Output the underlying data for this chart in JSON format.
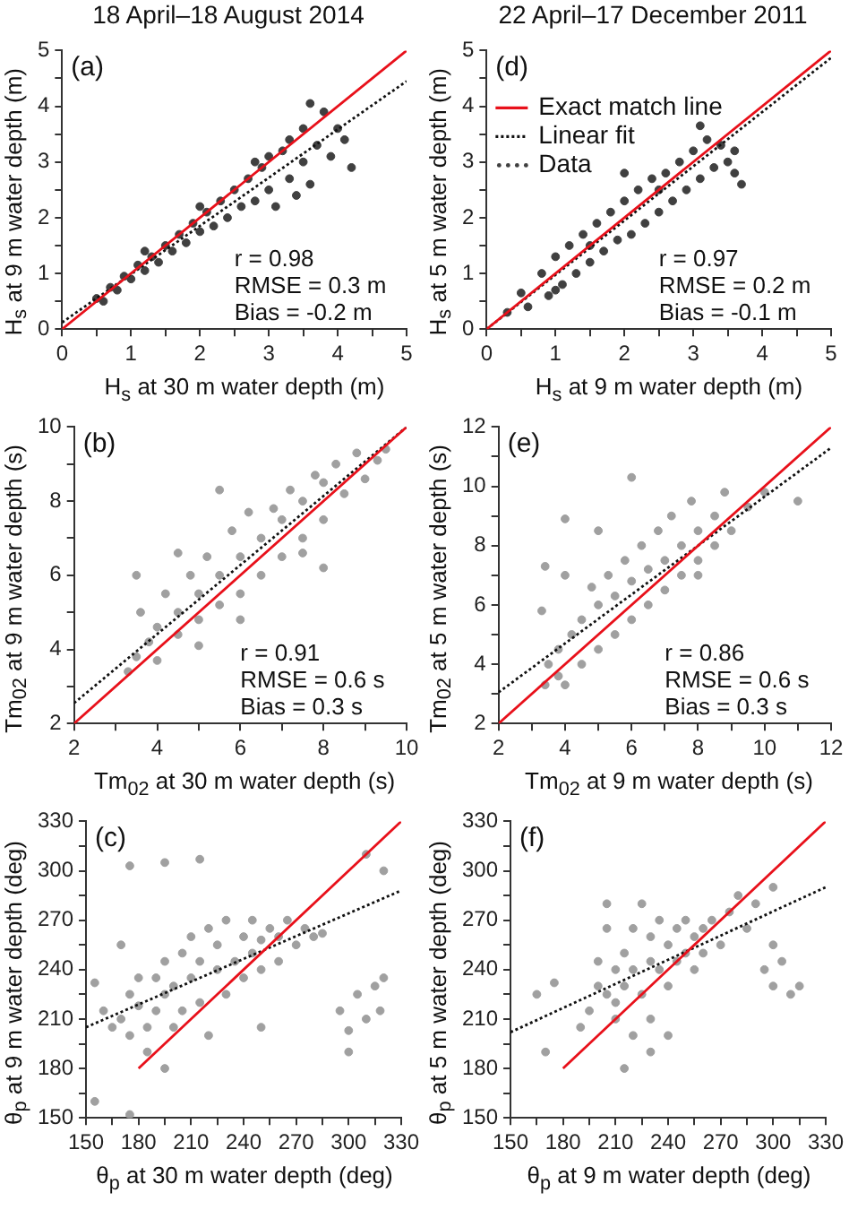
{
  "chart_data": [
    {
      "type": "scatter",
      "title": "18 April–18 August 2014",
      "xlabel": "H$_{s}$ at 30 m water depth (m)",
      "ylabel": "H$_{s}$ at 9 m water depth (m)",
      "xlim": [
        0,
        5
      ],
      "ylim": [
        0,
        5
      ],
      "xticks": [
        0,
        {
          "value": 0.5,
          "label": null
        },
        1,
        {
          "value": 1.5,
          "label": null
        },
        2,
        {
          "value": 2.5,
          "label": null
        },
        3,
        {
          "value": 3.5,
          "label": null
        },
        4,
        {
          "value": 4.5,
          "label": null
        },
        5
      ],
      "yticks": [
        0,
        {
          "value": 0.5,
          "label": null
        },
        1,
        {
          "value": 1.5,
          "label": null
        },
        2,
        {
          "value": 2.5,
          "label": null
        },
        3,
        {
          "value": 3.5,
          "label": null
        },
        4,
        {
          "value": 4.5,
          "label": null
        },
        5
      ],
      "annotations": [
        "(a)",
        "r = 0.98",
        "RMSE = 0.3 m",
        "Bias = -0.2 m"
      ],
      "series": [
        {
          "type": "line",
          "color": "#e8101a",
          "line_style": "solid",
          "marker": "none",
          "x": [
            0,
            5
          ],
          "values": [
            0,
            5
          ]
        },
        {
          "type": "line",
          "color": "#111111",
          "line_style": "dotted",
          "marker": "none",
          "x": [
            0,
            5
          ],
          "values": [
            0.12,
            4.45
          ]
        },
        {
          "color": "#404040",
          "marker": "circle",
          "x": [
            0.5,
            0.6,
            0.7,
            0.8,
            0.9,
            1.0,
            1.1,
            1.2,
            1.3,
            1.4,
            1.5,
            1.6,
            1.7,
            1.8,
            1.9,
            2.0,
            2.1,
            2.2,
            2.3,
            2.4,
            2.5,
            2.6,
            2.7,
            2.8,
            2.9,
            3.0,
            3.0,
            3.1,
            3.2,
            3.3,
            3.3,
            3.4,
            3.5,
            3.5,
            3.6,
            3.7,
            3.8,
            3.9,
            4.0,
            4.1,
            4.2,
            3.6,
            2.8,
            2.0,
            1.2
          ],
          "values": [
            0.55,
            0.5,
            0.75,
            0.7,
            0.95,
            0.9,
            1.15,
            1.05,
            1.3,
            1.2,
            1.5,
            1.4,
            1.7,
            1.55,
            1.9,
            1.75,
            2.1,
            1.85,
            2.3,
            2.0,
            2.5,
            2.2,
            2.7,
            2.3,
            2.9,
            2.5,
            3.1,
            2.2,
            3.2,
            2.7,
            3.4,
            2.4,
            3.0,
            3.6,
            2.6,
            3.3,
            3.9,
            3.1,
            3.6,
            3.4,
            2.9,
            4.05,
            3.0,
            2.2,
            1.4
          ]
        }
      ]
    },
    {
      "type": "scatter",
      "title": "22 April–17 December 2011",
      "xlabel": "H$_{s}$ at 9 m water depth (m)",
      "ylabel": "H$_{s}$ at 5 m water depth (m)",
      "xlim": [
        0,
        5
      ],
      "ylim": [
        0,
        5
      ],
      "xticks": [
        0,
        {
          "value": 0.5,
          "label": null
        },
        1,
        {
          "value": 1.5,
          "label": null
        },
        2,
        {
          "value": 2.5,
          "label": null
        },
        3,
        {
          "value": 3.5,
          "label": null
        },
        4,
        {
          "value": 4.5,
          "label": null
        },
        5
      ],
      "yticks": [
        0,
        {
          "value": 0.5,
          "label": null
        },
        1,
        {
          "value": 1.5,
          "label": null
        },
        2,
        {
          "value": 2.5,
          "label": null
        },
        3,
        {
          "value": 3.5,
          "label": null
        },
        4,
        {
          "value": 4.5,
          "label": null
        },
        5
      ],
      "legend": "top left",
      "annotations": [
        "(d)",
        "r = 0.97",
        "RMSE = 0.2 m",
        "Bias = -0.1 m"
      ],
      "series": [
        {
          "type": "line",
          "name": "Exact match line",
          "color": "#e8101a",
          "line_style": "solid",
          "marker": "none",
          "x": [
            0,
            5
          ],
          "values": [
            0,
            5
          ]
        },
        {
          "type": "line",
          "name": "Linear fit",
          "color": "#111111",
          "line_style": "dotted",
          "marker": "none",
          "x": [
            0,
            5
          ],
          "values": [
            0,
            4.87
          ]
        },
        {
          "name": "Data",
          "color": "#404040",
          "marker": "circle",
          "x": [
            0.3,
            0.5,
            0.6,
            0.8,
            0.9,
            1.0,
            1.1,
            1.2,
            1.3,
            1.4,
            1.5,
            1.6,
            1.7,
            1.8,
            1.9,
            2.0,
            2.1,
            2.2,
            2.3,
            2.4,
            2.5,
            2.6,
            2.7,
            2.8,
            2.9,
            3.0,
            3.1,
            3.2,
            3.3,
            3.4,
            3.5,
            3.6,
            3.7,
            3.6,
            2.0,
            1.5,
            2.5,
            1.0,
            3.1
          ],
          "values": [
            0.3,
            0.65,
            0.4,
            1.0,
            0.6,
            1.3,
            0.8,
            1.5,
            1.0,
            1.7,
            1.2,
            1.9,
            1.4,
            2.1,
            1.6,
            2.3,
            1.7,
            2.5,
            1.9,
            2.7,
            2.1,
            2.8,
            2.3,
            3.0,
            2.5,
            3.2,
            2.7,
            3.4,
            2.9,
            3.3,
            3.0,
            3.2,
            2.6,
            2.8,
            2.8,
            1.5,
            2.5,
            0.7,
            3.65
          ]
        }
      ]
    },
    {
      "type": "scatter",
      "xlabel": "Tm$_{02}$ at 30 m water depth (s)",
      "ylabel": "Tm$_{02}$ at 9 m water depth (s)",
      "xlim": [
        2,
        10
      ],
      "ylim": [
        2,
        10
      ],
      "xticks": [
        2,
        {
          "value": 3,
          "label": null
        },
        4,
        {
          "value": 5,
          "label": null
        },
        6,
        {
          "value": 7,
          "label": null
        },
        8,
        {
          "value": 9,
          "label": null
        },
        10
      ],
      "yticks": [
        2,
        {
          "value": 3,
          "label": null
        },
        4,
        {
          "value": 5,
          "label": null
        },
        6,
        {
          "value": 7,
          "label": null
        },
        8,
        {
          "value": 9,
          "label": null
        },
        10
      ],
      "annotations": [
        "(b)",
        "r = 0.91",
        "RMSE = 0.6 s",
        "Bias = 0.3 s"
      ],
      "series": [
        {
          "type": "line",
          "color": "#e8101a",
          "line_style": "solid",
          "marker": "none",
          "x": [
            2,
            10
          ],
          "values": [
            2,
            10
          ]
        },
        {
          "type": "line",
          "color": "#111111",
          "line_style": "dotted",
          "marker": "none",
          "x": [
            2,
            10
          ],
          "values": [
            2.55,
            10
          ]
        },
        {
          "color": "#a0a0a0",
          "marker": "circle",
          "x": [
            3.3,
            3.5,
            3.6,
            3.8,
            4.0,
            4.0,
            4.2,
            4.5,
            4.5,
            4.8,
            5.0,
            5.0,
            5.2,
            5.5,
            5.5,
            5.8,
            6.0,
            6.0,
            6.2,
            6.5,
            6.5,
            6.8,
            7.0,
            7.0,
            7.2,
            7.5,
            7.5,
            7.8,
            8.0,
            8.0,
            8.3,
            8.5,
            8.8,
            9.0,
            9.3,
            9.5,
            8.0,
            3.5,
            4.5,
            5.5,
            6.0,
            7.5,
            5.0
          ],
          "values": [
            3.4,
            3.8,
            5.0,
            4.2,
            3.7,
            4.6,
            5.5,
            4.4,
            5.0,
            6.0,
            4.8,
            5.5,
            6.5,
            5.2,
            6.0,
            7.2,
            5.5,
            6.5,
            7.7,
            6.0,
            7.0,
            7.8,
            6.5,
            7.5,
            8.3,
            7.0,
            8.0,
            8.7,
            7.5,
            8.5,
            9.0,
            8.2,
            9.3,
            8.6,
            9.1,
            9.4,
            6.2,
            6.0,
            6.6,
            8.3,
            4.8,
            6.6,
            4.1
          ]
        }
      ]
    },
    {
      "type": "scatter",
      "xlabel": "Tm$_{02}$ at 9 m water depth (s)",
      "ylabel": "Tm$_{02}$ at 5 m water depth (s)",
      "xlim": [
        2,
        12
      ],
      "ylim": [
        2,
        12
      ],
      "xticks": [
        2,
        {
          "value": 3,
          "label": null
        },
        4,
        {
          "value": 5,
          "label": null
        },
        6,
        {
          "value": 7,
          "label": null
        },
        8,
        {
          "value": 9,
          "label": null
        },
        10,
        {
          "value": 11,
          "label": null
        },
        12
      ],
      "yticks": [
        2,
        {
          "value": 3,
          "label": null
        },
        4,
        {
          "value": 5,
          "label": null
        },
        6,
        {
          "value": 7,
          "label": null
        },
        8,
        {
          "value": 9,
          "label": null
        },
        10,
        {
          "value": 11,
          "label": null
        },
        12
      ],
      "annotations": [
        "(e)",
        "r = 0.86",
        "RMSE = 0.6 s",
        "Bias = 0.3 s"
      ],
      "series": [
        {
          "type": "line",
          "color": "#e8101a",
          "line_style": "solid",
          "marker": "none",
          "x": [
            2,
            12
          ],
          "values": [
            2,
            12
          ]
        },
        {
          "type": "line",
          "color": "#111111",
          "line_style": "dotted",
          "marker": "none",
          "x": [
            2,
            12
          ],
          "values": [
            3.05,
            11.3
          ]
        },
        {
          "color": "#a0a0a0",
          "marker": "circle",
          "x": [
            3.4,
            3.5,
            3.4,
            3.3,
            3.8,
            3.8,
            4.0,
            4.0,
            4.2,
            4.5,
            4.5,
            4.8,
            5.0,
            5.0,
            5.0,
            5.3,
            5.5,
            5.5,
            5.8,
            6.0,
            6.0,
            6.0,
            6.3,
            6.5,
            6.5,
            6.8,
            7.0,
            7.0,
            7.2,
            7.5,
            7.5,
            7.8,
            8.0,
            8.0,
            8.5,
            8.5,
            8.8,
            9.0,
            9.5,
            10.0,
            11.0,
            8.0,
            4.0
          ],
          "values": [
            3.3,
            4.0,
            7.3,
            5.8,
            3.6,
            4.5,
            7.0,
            8.9,
            5.0,
            4.0,
            5.5,
            6.6,
            4.5,
            6.0,
            8.5,
            7.0,
            5.0,
            6.3,
            7.5,
            5.5,
            6.8,
            10.3,
            8.0,
            6.0,
            7.2,
            8.5,
            6.5,
            7.5,
            9.0,
            7.0,
            8.0,
            9.5,
            7.5,
            8.5,
            8.0,
            9.0,
            9.8,
            8.5,
            9.3,
            9.8,
            9.5,
            7.0,
            3.3
          ]
        }
      ]
    },
    {
      "type": "scatter",
      "xlabel": "θ$_{p}$ at 30 m water depth (deg)",
      "ylabel": "θ$_{p}$ at 9 m water depth (deg)",
      "xlim": [
        150,
        330
      ],
      "ylim": [
        150,
        330
      ],
      "xticks": [
        150,
        {
          "value": 165,
          "label": null
        },
        180,
        {
          "value": 195,
          "label": null
        },
        210,
        {
          "value": 225,
          "label": null
        },
        240,
        {
          "value": 255,
          "label": null
        },
        270,
        {
          "value": 285,
          "label": null
        },
        300,
        {
          "value": 315,
          "label": null
        },
        330
      ],
      "yticks": [
        150,
        {
          "value": 165,
          "label": null
        },
        180,
        {
          "value": 195,
          "label": null
        },
        210,
        {
          "value": 225,
          "label": null
        },
        240,
        {
          "value": 255,
          "label": null
        },
        270,
        {
          "value": 285,
          "label": null
        },
        300,
        {
          "value": 315,
          "label": null
        },
        330
      ],
      "annotations": [
        "(c)"
      ],
      "series": [
        {
          "type": "line",
          "color": "#e8101a",
          "line_style": "solid",
          "marker": "none",
          "x": [
            180,
            330
          ],
          "values": [
            180,
            330
          ]
        },
        {
          "type": "line",
          "color": "#111111",
          "line_style": "dotted",
          "marker": "none",
          "x": [
            150,
            330
          ],
          "values": [
            205,
            288
          ]
        },
        {
          "color": "#a0a0a0",
          "marker": "circle",
          "x": [
            155,
            160,
            165,
            170,
            175,
            175,
            180,
            180,
            185,
            185,
            190,
            190,
            195,
            195,
            195,
            200,
            200,
            205,
            205,
            210,
            210,
            215,
            215,
            220,
            220,
            225,
            225,
            230,
            230,
            235,
            240,
            240,
            245,
            245,
            250,
            250,
            255,
            260,
            260,
            265,
            270,
            275,
            280,
            285,
            170,
            175,
            195,
            215,
            310,
            320,
            305,
            310,
            315,
            318,
            320,
            300,
            300,
            295,
            250,
            155,
            175
          ],
          "values": [
            232,
            215,
            205,
            210,
            200,
            225,
            218,
            235,
            190,
            205,
            215,
            235,
            180,
            225,
            245,
            205,
            230,
            250,
            215,
            235,
            260,
            220,
            245,
            265,
            200,
            240,
            255,
            225,
            270,
            245,
            235,
            260,
            250,
            270,
            240,
            258,
            265,
            245,
            260,
            270,
            255,
            265,
            260,
            262,
            255,
            303,
            305,
            307,
            310,
            300,
            225,
            210,
            230,
            215,
            235,
            203,
            190,
            215,
            205,
            160,
            152
          ]
        }
      ]
    },
    {
      "type": "scatter",
      "xlabel": "θ$_{p}$ at 9 m water depth (deg)",
      "ylabel": "θ$_{p}$ at 5 m water depth (deg)",
      "xlim": [
        150,
        330
      ],
      "ylim": [
        150,
        330
      ],
      "xticks": [
        150,
        {
          "value": 165,
          "label": null
        },
        180,
        {
          "value": 195,
          "label": null
        },
        210,
        {
          "value": 225,
          "label": null
        },
        240,
        {
          "value": 255,
          "label": null
        },
        270,
        {
          "value": 285,
          "label": null
        },
        300,
        {
          "value": 315,
          "label": null
        },
        330
      ],
      "yticks": [
        150,
        {
          "value": 165,
          "label": null
        },
        180,
        {
          "value": 195,
          "label": null
        },
        210,
        {
          "value": 225,
          "label": null
        },
        240,
        {
          "value": 255,
          "label": null
        },
        270,
        {
          "value": 285,
          "label": null
        },
        300,
        {
          "value": 315,
          "label": null
        },
        330
      ],
      "annotations": [
        "(f)"
      ],
      "series": [
        {
          "type": "line",
          "color": "#e8101a",
          "line_style": "solid",
          "marker": "none",
          "x": [
            180,
            330
          ],
          "values": [
            180,
            330
          ]
        },
        {
          "type": "line",
          "color": "#111111",
          "line_style": "dotted",
          "marker": "none",
          "x": [
            150,
            330
          ],
          "values": [
            202,
            290
          ]
        },
        {
          "color": "#a0a0a0",
          "marker": "circle",
          "x": [
            165,
            170,
            175,
            190,
            195,
            200,
            200,
            205,
            205,
            205,
            210,
            210,
            210,
            215,
            215,
            220,
            220,
            220,
            225,
            225,
            230,
            230,
            230,
            235,
            235,
            240,
            240,
            245,
            245,
            250,
            250,
            255,
            255,
            260,
            260,
            265,
            270,
            275,
            280,
            285,
            290,
            300,
            295,
            300,
            305,
            310,
            315,
            300,
            240,
            230,
            215
          ],
          "values": [
            225,
            190,
            232,
            205,
            215,
            230,
            245,
            225,
            265,
            280,
            220,
            240,
            210,
            250,
            230,
            200,
            265,
            240,
            225,
            280,
            245,
            260,
            210,
            240,
            270,
            255,
            230,
            265,
            245,
            250,
            270,
            240,
            260,
            265,
            250,
            270,
            255,
            275,
            285,
            265,
            280,
            290,
            240,
            230,
            245,
            225,
            230,
            255,
            200,
            190,
            180
          ]
        }
      ]
    }
  ]
}
